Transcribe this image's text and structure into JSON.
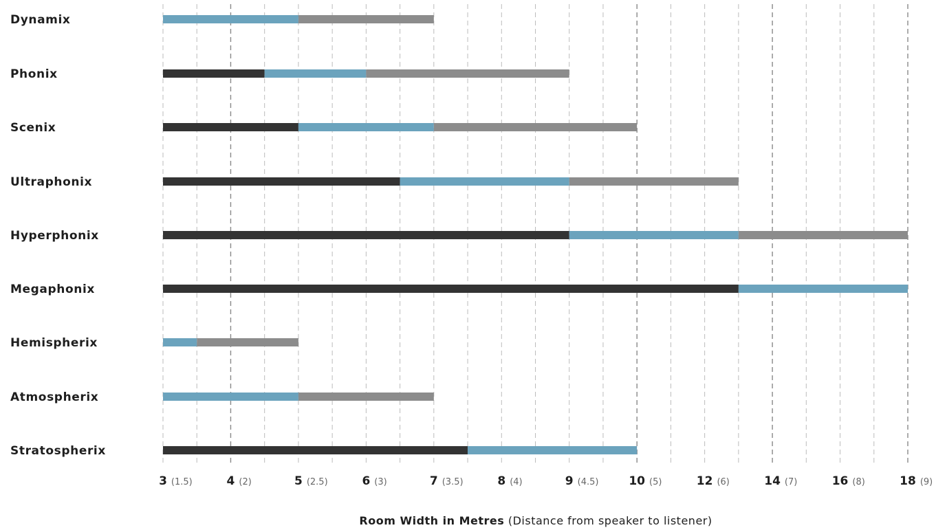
{
  "chart_data": {
    "type": "bar",
    "orientation": "horizontal-stacked-ranges",
    "x_positions": [
      "3",
      "3.5",
      "4",
      "4.5",
      "5",
      "5.5",
      "6",
      "6.5",
      "7",
      "7.5",
      "8",
      "8.5",
      "9",
      "9.5",
      "10",
      "11",
      "12",
      "13",
      "14",
      "15",
      "16",
      "17",
      "18"
    ],
    "x_ticks": [
      {
        "x": "3",
        "label": "3",
        "sub": "(1.5)"
      },
      {
        "x": "4",
        "label": "4",
        "sub": "(2)"
      },
      {
        "x": "5",
        "label": "5",
        "sub": "(2.5)"
      },
      {
        "x": "6",
        "label": "6",
        "sub": "(3)"
      },
      {
        "x": "7",
        "label": "7",
        "sub": "(3.5)"
      },
      {
        "x": "8",
        "label": "8",
        "sub": "(4)"
      },
      {
        "x": "9",
        "label": "9",
        "sub": "(4.5)"
      },
      {
        "x": "10",
        "label": "10",
        "sub": "(5)"
      },
      {
        "x": "12",
        "label": "12",
        "sub": "(6)"
      },
      {
        "x": "14",
        "label": "14",
        "sub": "(7)"
      },
      {
        "x": "16",
        "label": "16",
        "sub": "(8)"
      },
      {
        "x": "18",
        "label": "18",
        "sub": "(9)"
      }
    ],
    "major_grid": [
      "4",
      "10",
      "14",
      "18"
    ],
    "xlabel_bold": "Room Width in Metres",
    "xlabel_rest": " (Distance from speaker to listener)",
    "colors": {
      "dark": "#333333",
      "blue": "#6ba3bd",
      "gray": "#8c8c8c",
      "grid": "#bbbbbb",
      "grid_major": "#888888"
    },
    "categories": [
      "Dynamix",
      "Phonix",
      "Scenix",
      "Ultraphonix",
      "Hyperphonix",
      "Megaphonix",
      "Hemispherix",
      "Atmospherix",
      "Stratospherix"
    ],
    "rows": [
      {
        "name": "Dynamix",
        "segments": [
          {
            "from": "3",
            "to": "5",
            "color": "blue"
          },
          {
            "from": "5",
            "to": "7",
            "color": "gray"
          }
        ]
      },
      {
        "name": "Phonix",
        "segments": [
          {
            "from": "3",
            "to": "4.5",
            "color": "dark"
          },
          {
            "from": "4.5",
            "to": "6",
            "color": "blue"
          },
          {
            "from": "6",
            "to": "9",
            "color": "gray"
          }
        ]
      },
      {
        "name": "Scenix",
        "segments": [
          {
            "from": "3",
            "to": "5",
            "color": "dark"
          },
          {
            "from": "5",
            "to": "7",
            "color": "blue"
          },
          {
            "from": "7",
            "to": "10",
            "color": "gray"
          }
        ]
      },
      {
        "name": "Ultraphonix",
        "segments": [
          {
            "from": "3",
            "to": "6.5",
            "color": "dark"
          },
          {
            "from": "6.5",
            "to": "9",
            "color": "blue"
          },
          {
            "from": "9",
            "to": "13",
            "color": "gray"
          }
        ]
      },
      {
        "name": "Hyperphonix",
        "segments": [
          {
            "from": "3",
            "to": "9",
            "color": "dark"
          },
          {
            "from": "9",
            "to": "13",
            "color": "blue"
          },
          {
            "from": "13",
            "to": "18",
            "color": "gray"
          }
        ]
      },
      {
        "name": "Megaphonix",
        "segments": [
          {
            "from": "3",
            "to": "13",
            "color": "dark"
          },
          {
            "from": "13",
            "to": "18",
            "color": "blue"
          }
        ]
      },
      {
        "name": "Hemispherix",
        "segments": [
          {
            "from": "3",
            "to": "3.5",
            "color": "blue"
          },
          {
            "from": "3.5",
            "to": "5",
            "color": "gray"
          }
        ]
      },
      {
        "name": "Atmospherix",
        "segments": [
          {
            "from": "3",
            "to": "5",
            "color": "blue"
          },
          {
            "from": "5",
            "to": "7",
            "color": "gray"
          }
        ]
      },
      {
        "name": "Stratospherix",
        "segments": [
          {
            "from": "3",
            "to": "7.5",
            "color": "dark"
          },
          {
            "from": "7.5",
            "to": "10",
            "color": "blue"
          }
        ]
      }
    ]
  }
}
